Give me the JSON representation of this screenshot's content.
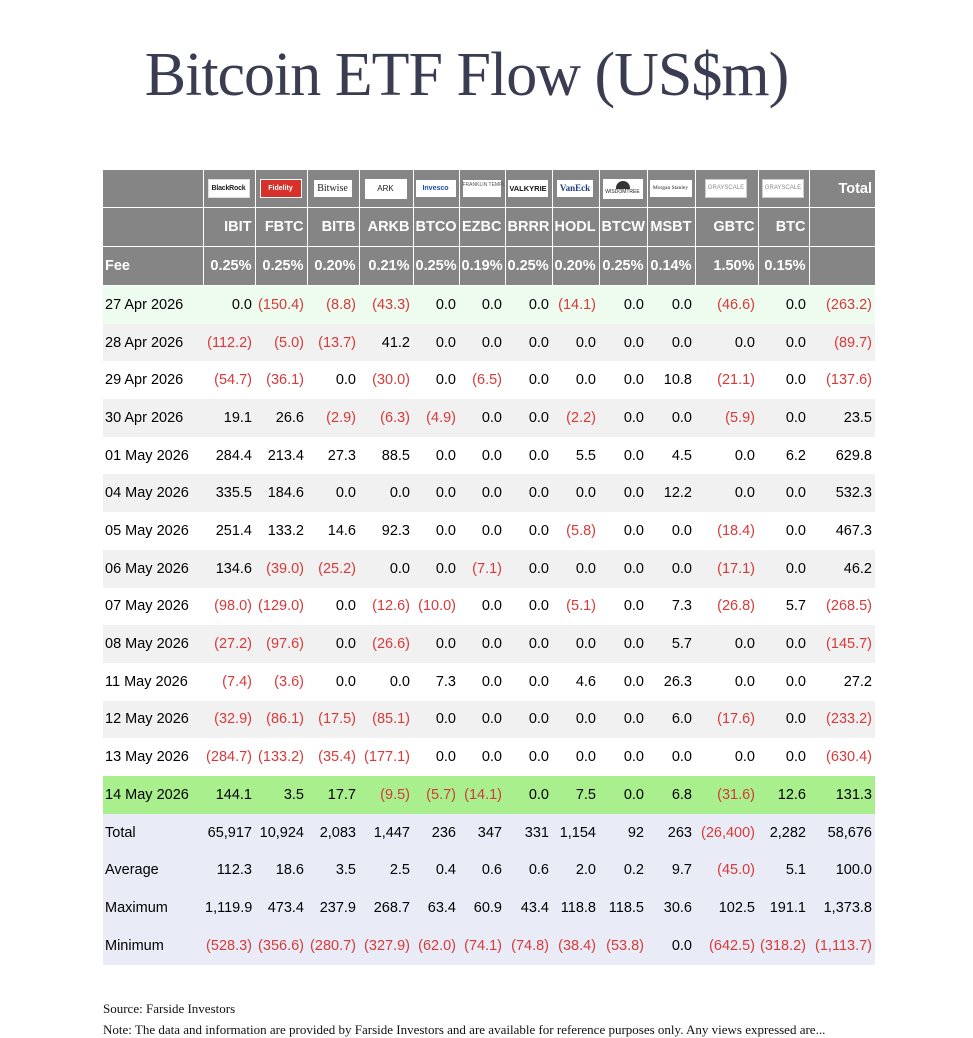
{
  "title": "Bitcoin ETF Flow (US$m)",
  "header": {
    "logos": [
      {
        "icon": "blackrock-logo",
        "text": "BlackRock"
      },
      {
        "icon": "fidelity-logo",
        "text": "Fidelity"
      },
      {
        "icon": "bitwise-logo",
        "text": "Bitwise"
      },
      {
        "icon": "ark-invest-logo",
        "text": "ARK"
      },
      {
        "icon": "invesco-logo",
        "text": "Invesco"
      },
      {
        "icon": "franklin-templeton-logo",
        "text": "FRANKLIN TEMPLETON"
      },
      {
        "icon": "valkyrie-logo",
        "text": "VALKYRIE"
      },
      {
        "icon": "vaneck-logo",
        "text": "VanEck"
      },
      {
        "icon": "wisdomtree-logo",
        "text": "WISDOMTREE"
      },
      {
        "icon": "morgan-stanley-logo",
        "text": "Morgan Stanley"
      },
      {
        "icon": "grayscale-logo",
        "text": "GRAYSCALE"
      },
      {
        "icon": "grayscale-logo",
        "text": "GRAYSCALE"
      }
    ],
    "total_label": "Total",
    "tickers": [
      "IBIT",
      "FBTC",
      "BITB",
      "ARKB",
      "BTCO",
      "EZBC",
      "BRRR",
      "HODL",
      "BTCW",
      "MSBT",
      "GBTC",
      "BTC"
    ],
    "fee_label": "Fee",
    "fees": [
      "0.25%",
      "0.25%",
      "0.20%",
      "0.21%",
      "0.25%",
      "0.19%",
      "0.25%",
      "0.20%",
      "0.25%",
      "0.14%",
      "1.50%",
      "0.15%"
    ]
  },
  "rows": [
    {
      "date": "27 Apr 2026",
      "values": [
        "0.0",
        "(150.4)",
        "(8.8)",
        "(43.3)",
        "0.0",
        "0.0",
        "0.0",
        "(14.1)",
        "0.0",
        "0.0",
        "(46.6)",
        "0.0",
        "(263.2)"
      ]
    },
    {
      "date": "28 Apr 2026",
      "values": [
        "(112.2)",
        "(5.0)",
        "(13.7)",
        "41.2",
        "0.0",
        "0.0",
        "0.0",
        "0.0",
        "0.0",
        "0.0",
        "0.0",
        "0.0",
        "(89.7)"
      ]
    },
    {
      "date": "29 Apr 2026",
      "values": [
        "(54.7)",
        "(36.1)",
        "0.0",
        "(30.0)",
        "0.0",
        "(6.5)",
        "0.0",
        "0.0",
        "0.0",
        "10.8",
        "(21.1)",
        "0.0",
        "(137.6)"
      ]
    },
    {
      "date": "30 Apr 2026",
      "values": [
        "19.1",
        "26.6",
        "(2.9)",
        "(6.3)",
        "(4.9)",
        "0.0",
        "0.0",
        "(2.2)",
        "0.0",
        "0.0",
        "(5.9)",
        "0.0",
        "23.5"
      ]
    },
    {
      "date": "01 May 2026",
      "values": [
        "284.4",
        "213.4",
        "27.3",
        "88.5",
        "0.0",
        "0.0",
        "0.0",
        "5.5",
        "0.0",
        "4.5",
        "0.0",
        "6.2",
        "629.8"
      ]
    },
    {
      "date": "04 May 2026",
      "values": [
        "335.5",
        "184.6",
        "0.0",
        "0.0",
        "0.0",
        "0.0",
        "0.0",
        "0.0",
        "0.0",
        "12.2",
        "0.0",
        "0.0",
        "532.3"
      ]
    },
    {
      "date": "05 May 2026",
      "values": [
        "251.4",
        "133.2",
        "14.6",
        "92.3",
        "0.0",
        "0.0",
        "0.0",
        "(5.8)",
        "0.0",
        "0.0",
        "(18.4)",
        "0.0",
        "467.3"
      ]
    },
    {
      "date": "06 May 2026",
      "values": [
        "134.6",
        "(39.0)",
        "(25.2)",
        "0.0",
        "0.0",
        "(7.1)",
        "0.0",
        "0.0",
        "0.0",
        "0.0",
        "(17.1)",
        "0.0",
        "46.2"
      ]
    },
    {
      "date": "07 May 2026",
      "values": [
        "(98.0)",
        "(129.0)",
        "0.0",
        "(12.6)",
        "(10.0)",
        "0.0",
        "0.0",
        "(5.1)",
        "0.0",
        "7.3",
        "(26.8)",
        "5.7",
        "(268.5)"
      ]
    },
    {
      "date": "08 May 2026",
      "values": [
        "(27.2)",
        "(97.6)",
        "0.0",
        "(26.6)",
        "0.0",
        "0.0",
        "0.0",
        "0.0",
        "0.0",
        "5.7",
        "0.0",
        "0.0",
        "(145.7)"
      ]
    },
    {
      "date": "11 May 2026",
      "values": [
        "(7.4)",
        "(3.6)",
        "0.0",
        "0.0",
        "7.3",
        "0.0",
        "0.0",
        "4.6",
        "0.0",
        "26.3",
        "0.0",
        "0.0",
        "27.2"
      ]
    },
    {
      "date": "12 May 2026",
      "values": [
        "(32.9)",
        "(86.1)",
        "(17.5)",
        "(85.1)",
        "0.0",
        "0.0",
        "0.0",
        "0.0",
        "0.0",
        "6.0",
        "(17.6)",
        "0.0",
        "(233.2)"
      ]
    },
    {
      "date": "13 May 2026",
      "values": [
        "(284.7)",
        "(133.2)",
        "(35.4)",
        "(177.1)",
        "0.0",
        "0.0",
        "0.0",
        "0.0",
        "0.0",
        "0.0",
        "0.0",
        "0.0",
        "(630.4)"
      ]
    },
    {
      "date": "14 May 2026",
      "values": [
        "144.1",
        "3.5",
        "17.7",
        "(9.5)",
        "(5.7)",
        "(14.1)",
        "0.0",
        "7.5",
        "0.0",
        "6.8",
        "(31.6)",
        "12.6",
        "131.3"
      ]
    }
  ],
  "summary": [
    {
      "label": "Total",
      "values": [
        "65,917",
        "10,924",
        "2,083",
        "1,447",
        "236",
        "347",
        "331",
        "1,154",
        "92",
        "263",
        "(26,400)",
        "2,282",
        "58,676"
      ]
    },
    {
      "label": "Average",
      "values": [
        "112.3",
        "18.6",
        "3.5",
        "2.5",
        "0.4",
        "0.6",
        "0.6",
        "2.0",
        "0.2",
        "9.7",
        "(45.0)",
        "5.1",
        "100.0"
      ]
    },
    {
      "label": "Maximum",
      "values": [
        "1,119.9",
        "473.4",
        "237.9",
        "268.7",
        "63.4",
        "60.9",
        "43.4",
        "118.8",
        "118.5",
        "30.6",
        "102.5",
        "191.1",
        "1,373.8"
      ]
    },
    {
      "label": "Minimum",
      "values": [
        "(528.3)",
        "(356.6)",
        "(280.7)",
        "(327.9)",
        "(62.0)",
        "(74.1)",
        "(74.8)",
        "(38.4)",
        "(53.8)",
        "0.0",
        "(642.5)",
        "(318.2)",
        "(1,113.7)"
      ]
    }
  ],
  "colors": {
    "header_bg": "#858585",
    "negative": "#d63a3a",
    "first_row_bg": "#eefbef",
    "latest_row_bg": "#a9ef8e",
    "summary_bg": "#e9ecf6",
    "title": "#3a3d52"
  },
  "footer": {
    "source": "Source: Farside Investors",
    "note": "Note: The data and information are provided by Farside Investors and are available for reference purposes only. Any views expressed are..."
  }
}
